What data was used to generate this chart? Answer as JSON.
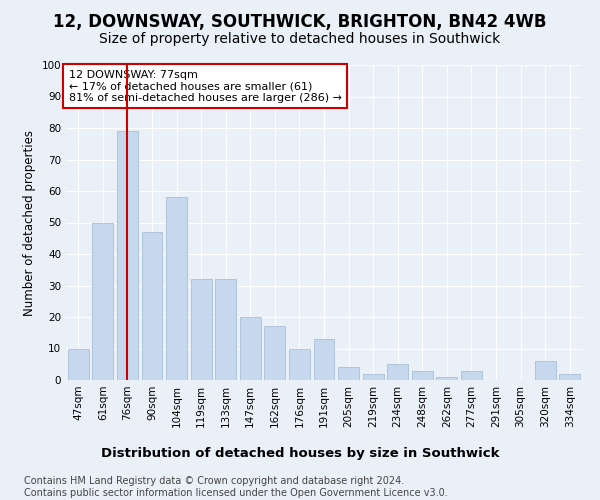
{
  "title": "12, DOWNSWAY, SOUTHWICK, BRIGHTON, BN42 4WB",
  "subtitle": "Size of property relative to detached houses in Southwick",
  "xlabel": "Distribution of detached houses by size in Southwick",
  "ylabel": "Number of detached properties",
  "categories": [
    "47sqm",
    "61sqm",
    "76sqm",
    "90sqm",
    "104sqm",
    "119sqm",
    "133sqm",
    "147sqm",
    "162sqm",
    "176sqm",
    "191sqm",
    "205sqm",
    "219sqm",
    "234sqm",
    "248sqm",
    "262sqm",
    "277sqm",
    "291sqm",
    "305sqm",
    "320sqm",
    "334sqm"
  ],
  "values": [
    10,
    50,
    79,
    47,
    58,
    32,
    32,
    20,
    17,
    10,
    13,
    4,
    2,
    5,
    3,
    1,
    3,
    0,
    0,
    6,
    2
  ],
  "bar_color": "#c5d8ed",
  "bar_edge_color": "#a0b8d0",
  "vline_x": 2,
  "vline_color": "#cc0000",
  "annotation_text": "12 DOWNSWAY: 77sqm\n← 17% of detached houses are smaller (61)\n81% of semi-detached houses are larger (286) →",
  "annotation_box_color": "#ffffff",
  "annotation_box_edge": "#cc0000",
  "ylim": [
    0,
    100
  ],
  "yticks": [
    0,
    10,
    20,
    30,
    40,
    50,
    60,
    70,
    80,
    90,
    100
  ],
  "background_color": "#eaf0f8",
  "plot_bg_color": "#eaf0f8",
  "grid_color": "#ffffff",
  "footer_line1": "Contains HM Land Registry data © Crown copyright and database right 2024.",
  "footer_line2": "Contains public sector information licensed under the Open Government Licence v3.0.",
  "title_fontsize": 12,
  "subtitle_fontsize": 10,
  "xlabel_fontsize": 9.5,
  "ylabel_fontsize": 8.5,
  "tick_fontsize": 7.5,
  "annotation_fontsize": 8,
  "footer_fontsize": 7
}
